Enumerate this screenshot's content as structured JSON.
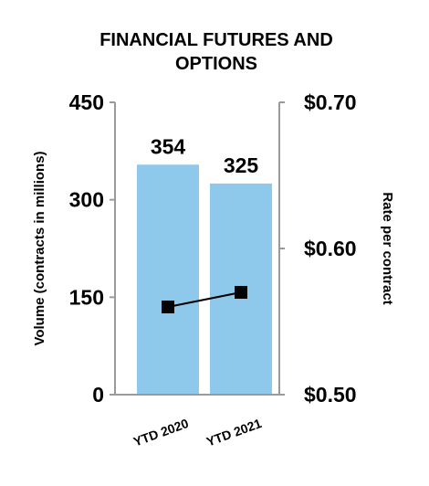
{
  "chart_data": {
    "type": "bar+line",
    "title_lines": [
      "FINANCIAL FUTURES AND",
      "OPTIONS"
    ],
    "categories": [
      "YTD 2020",
      "YTD 2021"
    ],
    "bars": {
      "name": "Volume",
      "values": [
        354,
        325
      ],
      "labels": [
        "354",
        "325"
      ],
      "color": "#8ec8ea"
    },
    "line": {
      "name": "Rate per contract",
      "values": [
        0.56,
        0.57
      ],
      "color": "#000000"
    },
    "y_left": {
      "label": "Volume (contracts in millions)",
      "range": [
        0,
        450
      ],
      "ticks": [
        0,
        150,
        300,
        450
      ],
      "tick_labels": [
        "0",
        "150",
        "300",
        "450"
      ]
    },
    "y_right": {
      "label": "Rate per contract",
      "range": [
        0.5,
        0.7
      ],
      "ticks": [
        0.5,
        0.6,
        0.7
      ],
      "tick_labels": [
        "$0.50",
        "$0.60",
        "$0.70"
      ]
    },
    "grid": false,
    "legend": "none"
  }
}
